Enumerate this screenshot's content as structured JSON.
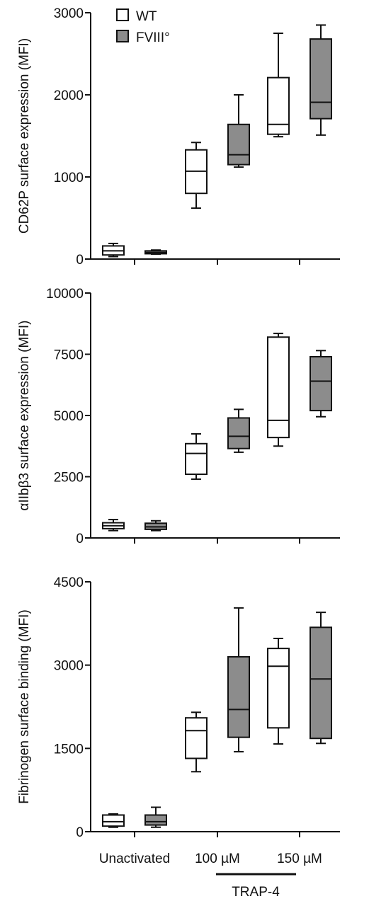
{
  "legend": [
    {
      "label": "WT",
      "color": "#ffffff"
    },
    {
      "label": "FVIII°",
      "color": "#8c8c8c"
    }
  ],
  "x_categories": [
    "Unactivated",
    "100 µM",
    "150 µM"
  ],
  "group_label": "TRAP-4",
  "chart_data": [
    {
      "type": "box",
      "ylabel": "CD62P surface expression (MFI)",
      "ylim": [
        0,
        3000
      ],
      "yticks": [
        0,
        1000,
        2000,
        3000
      ],
      "categories": [
        "Unactivated",
        "100 µM",
        "150 µM"
      ],
      "series": [
        {
          "name": "WT",
          "color": "#ffffff",
          "boxes": [
            {
              "min": 30,
              "q1": 50,
              "median": 100,
              "q3": 160,
              "max": 190
            },
            {
              "min": 620,
              "q1": 800,
              "median": 1070,
              "q3": 1330,
              "max": 1420
            },
            {
              "min": 1490,
              "q1": 1520,
              "median": 1640,
              "q3": 2210,
              "max": 2750
            }
          ]
        },
        {
          "name": "FVIII°",
          "color": "#8c8c8c",
          "boxes": [
            {
              "min": 60,
              "q1": 65,
              "median": 80,
              "q3": 100,
              "max": 110
            },
            {
              "min": 1120,
              "q1": 1150,
              "median": 1270,
              "q3": 1640,
              "max": 2000
            },
            {
              "min": 1510,
              "q1": 1710,
              "median": 1910,
              "q3": 2680,
              "max": 2850
            }
          ]
        }
      ]
    },
    {
      "type": "box",
      "ylabel": "αIIbβ3 surface expression (MFI)",
      "ylim": [
        0,
        10000
      ],
      "yticks": [
        0,
        2500,
        5000,
        7500,
        10000
      ],
      "categories": [
        "Unactivated",
        "100 µM",
        "150 µM"
      ],
      "series": [
        {
          "name": "WT",
          "color": "#ffffff",
          "boxes": [
            {
              "min": 300,
              "q1": 380,
              "median": 500,
              "q3": 620,
              "max": 750
            },
            {
              "min": 2400,
              "q1": 2600,
              "median": 3450,
              "q3": 3850,
              "max": 4250
            },
            {
              "min": 3750,
              "q1": 4100,
              "median": 4800,
              "q3": 8200,
              "max": 8350
            }
          ]
        },
        {
          "name": "FVIII°",
          "color": "#8c8c8c",
          "boxes": [
            {
              "min": 300,
              "q1": 350,
              "median": 450,
              "q3": 600,
              "max": 700
            },
            {
              "min": 3500,
              "q1": 3650,
              "median": 4150,
              "q3": 4900,
              "max": 5250
            },
            {
              "min": 4950,
              "q1": 5200,
              "median": 6400,
              "q3": 7400,
              "max": 7650
            }
          ]
        }
      ]
    },
    {
      "type": "box",
      "ylabel": "Fibrinogen surface binding (MFI)",
      "ylim": [
        0,
        4500
      ],
      "yticks": [
        0,
        1500,
        3000,
        4500
      ],
      "categories": [
        "Unactivated",
        "100 µM",
        "150 µM"
      ],
      "series": [
        {
          "name": "WT",
          "color": "#ffffff",
          "boxes": [
            {
              "min": 80,
              "q1": 100,
              "median": 180,
              "q3": 300,
              "max": 320
            },
            {
              "min": 1080,
              "q1": 1320,
              "median": 1820,
              "q3": 2050,
              "max": 2150
            },
            {
              "min": 1580,
              "q1": 1870,
              "median": 2980,
              "q3": 3300,
              "max": 3480
            }
          ]
        },
        {
          "name": "FVIII°",
          "color": "#8c8c8c",
          "boxes": [
            {
              "min": 80,
              "q1": 120,
              "median": 180,
              "q3": 300,
              "max": 440
            },
            {
              "min": 1440,
              "q1": 1700,
              "median": 2200,
              "q3": 3150,
              "max": 4030
            },
            {
              "min": 1590,
              "q1": 1680,
              "median": 2750,
              "q3": 3680,
              "max": 3950
            }
          ]
        }
      ]
    }
  ]
}
